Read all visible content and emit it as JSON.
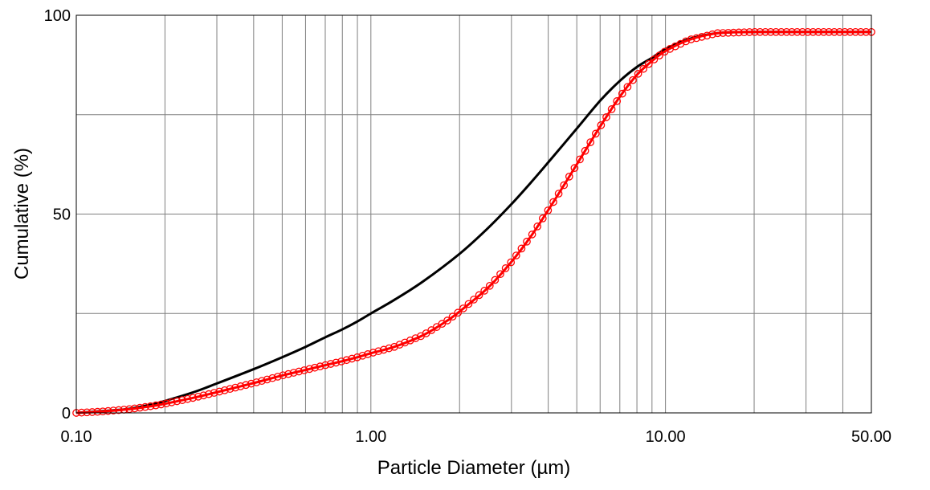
{
  "chart_data": {
    "type": "line",
    "xlabel": "Particle Diameter (µm)",
    "ylabel": "Cumulative  (%)",
    "x_scale": "log",
    "xlim": [
      0.1,
      50
    ],
    "ylim": [
      0,
      100
    ],
    "x_ticks": [
      {
        "value": 0.1,
        "label": "0.10"
      },
      {
        "value": 1,
        "label": "1.00"
      },
      {
        "value": 10,
        "label": "10.00"
      },
      {
        "value": 50,
        "label": "50.00"
      }
    ],
    "y_ticks": [
      {
        "value": 0,
        "label": "0"
      },
      {
        "value": 50,
        "label": "50"
      },
      {
        "value": 100,
        "label": "100"
      }
    ],
    "grid": true,
    "series": [
      {
        "color": "#000000",
        "style": "line",
        "x": [
          0.1,
          0.12,
          0.15,
          0.18,
          0.2,
          0.25,
          0.3,
          0.4,
          0.5,
          0.6,
          0.7,
          0.8,
          0.9,
          1.0,
          1.2,
          1.5,
          2.0,
          2.5,
          3.0,
          3.5,
          4.0,
          5.0,
          6.0,
          7.0,
          8.0,
          9.0,
          10.0,
          12.0,
          15.0,
          20.0,
          30.0,
          50.0
        ],
        "y": [
          0.0,
          0.4,
          1.0,
          2.1,
          3.0,
          5.2,
          7.4,
          11.0,
          14.0,
          16.6,
          19.0,
          21.0,
          23.0,
          25.0,
          28.4,
          33.0,
          40.0,
          46.5,
          52.5,
          58.0,
          63.0,
          71.5,
          78.5,
          83.5,
          87.0,
          89.3,
          91.5,
          94.0,
          95.5,
          95.8,
          95.8,
          95.8
        ]
      },
      {
        "color": "#ff0000",
        "style": "line-circles",
        "x": [
          0.1,
          0.12,
          0.15,
          0.18,
          0.2,
          0.25,
          0.3,
          0.4,
          0.5,
          0.6,
          0.7,
          0.8,
          0.9,
          1.0,
          1.2,
          1.5,
          1.8,
          2.0,
          2.5,
          3.0,
          3.5,
          4.0,
          4.5,
          5.0,
          6.0,
          7.0,
          8.0,
          9.0,
          10.0,
          12.0,
          15.0,
          20.0,
          30.0,
          50.0
        ],
        "y": [
          0.0,
          0.3,
          0.9,
          1.7,
          2.3,
          3.8,
          5.2,
          7.5,
          9.4,
          10.8,
          12.0,
          13.0,
          14.0,
          15.0,
          16.6,
          19.5,
          23.0,
          25.5,
          31.5,
          38.0,
          44.5,
          51.0,
          57.0,
          62.5,
          72.0,
          79.5,
          85.0,
          88.5,
          91.0,
          93.8,
          95.5,
          95.8,
          95.8,
          95.8
        ]
      }
    ]
  }
}
